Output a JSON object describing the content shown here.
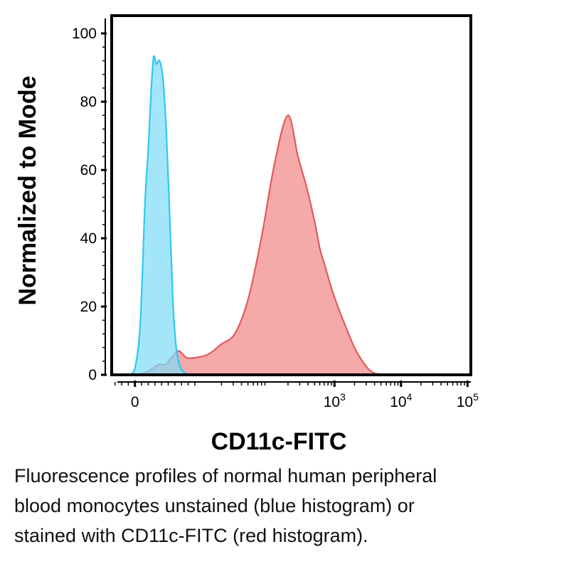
{
  "chart_data": {
    "type": "area",
    "title": "",
    "xlabel": "CD11c-FITC",
    "ylabel": "Normalized to Mode",
    "x_scale": "biexponential",
    "xlim": [
      -0.35,
      5.05
    ],
    "ylim": [
      0,
      100
    ],
    "y_ticks": [
      0,
      20,
      40,
      60,
      80,
      100
    ],
    "x_ticks": [
      {
        "value": 0,
        "base": "0",
        "exp": ""
      },
      {
        "value": 3,
        "base": "10",
        "exp": "3"
      },
      {
        "value": 4,
        "base": "10",
        "exp": "4"
      },
      {
        "value": 5,
        "base": "10",
        "exp": "5"
      }
    ],
    "series": [
      {
        "name": "unstained",
        "color": "#2fc8ef",
        "fill": "#7fdcf7",
        "x": [
          -0.08,
          0.0,
          0.08,
          0.15,
          0.2,
          0.24,
          0.28,
          0.32,
          0.37,
          0.42,
          0.47,
          0.52,
          0.57,
          0.62,
          0.67,
          0.72,
          0.78,
          0.85
        ],
        "y": [
          0,
          2,
          15,
          50,
          66,
          82,
          93,
          91,
          92,
          87,
          72,
          48,
          22,
          8,
          3,
          1,
          0.3,
          0
        ]
      },
      {
        "name": "CD11c-FITC",
        "color": "#e05b5b",
        "fill": "#f59a9a",
        "x": [
          0.05,
          0.2,
          0.35,
          0.45,
          0.55,
          0.65,
          0.72,
          0.78,
          0.9,
          1.1,
          1.3,
          1.5,
          1.7,
          1.9,
          2.1,
          2.3,
          2.45,
          2.58,
          2.7,
          2.78,
          2.84,
          2.9,
          2.96,
          3.05,
          3.15,
          3.3,
          3.42,
          3.52,
          3.6,
          3.68,
          3.8
        ],
        "y": [
          0,
          1,
          3,
          3,
          5,
          7,
          6,
          5,
          5,
          6,
          9,
          12,
          22,
          40,
          62,
          76,
          64,
          55,
          45,
          37,
          33,
          29,
          25,
          20,
          15,
          8,
          4,
          1.5,
          0.5,
          0.2,
          0
        ]
      }
    ]
  },
  "caption": {
    "line1": "Fluorescence profiles of normal human peripheral",
    "line2": "blood monocytes unstained (blue histogram) or",
    "line3": "stained with CD11c-FITC (red histogram)."
  }
}
